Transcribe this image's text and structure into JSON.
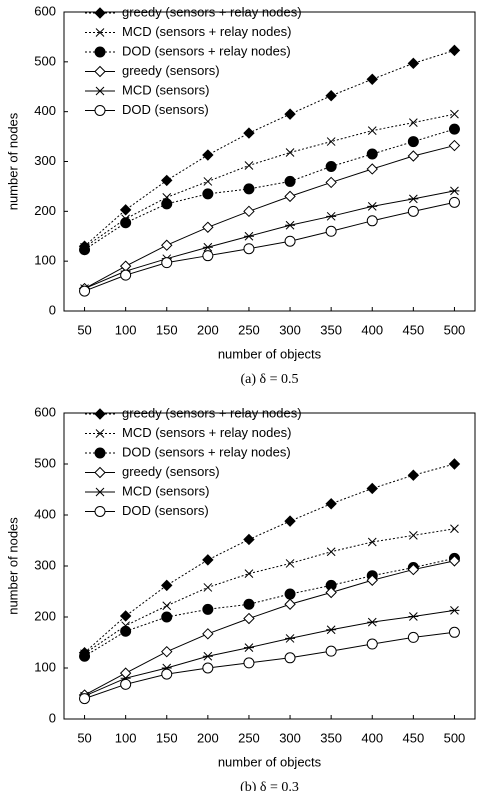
{
  "chart_data": [
    {
      "type": "line",
      "caption": "(a) δ = 0.5",
      "xlabel": "number of objects",
      "ylabel": "number of nodes",
      "x": [
        50,
        100,
        150,
        200,
        250,
        300,
        350,
        400,
        450,
        500
      ],
      "xlim": [
        25,
        525
      ],
      "xticks": [
        50,
        100,
        150,
        200,
        250,
        300,
        350,
        400,
        450,
        500
      ],
      "ylim": [
        0,
        600
      ],
      "yticks": [
        0,
        100,
        200,
        300,
        400,
        500,
        600
      ],
      "legend": "top-left",
      "series": [
        {
          "name": "greedy (sensors + relay nodes)",
          "color": "#000000",
          "marker": "diamond-filled",
          "line_style": "dotted",
          "values": [
            130,
            203,
            262,
            313,
            357,
            395,
            432,
            465,
            497,
            523
          ]
        },
        {
          "name": "MCD (sensors + relay nodes)",
          "color": "#000000",
          "marker": "x",
          "line_style": "dotted",
          "values": [
            128,
            185,
            228,
            260,
            292,
            318,
            340,
            362,
            378,
            395
          ]
        },
        {
          "name": "DOD (sensors + relay nodes)",
          "color": "#000000",
          "marker": "circle-filled",
          "line_style": "dotted",
          "values": [
            123,
            177,
            215,
            235,
            245,
            260,
            290,
            315,
            340,
            365
          ]
        },
        {
          "name": "greedy (sensors)",
          "color": "#000000",
          "marker": "diamond-open",
          "line_style": "solid",
          "values": [
            45,
            90,
            132,
            168,
            200,
            230,
            258,
            285,
            311,
            332
          ]
        },
        {
          "name": "MCD (sensors)",
          "color": "#000000",
          "marker": "asterisk",
          "line_style": "solid",
          "values": [
            45,
            80,
            105,
            128,
            150,
            172,
            190,
            210,
            225,
            241
          ]
        },
        {
          "name": "DOD (sensors)",
          "color": "#000000",
          "marker": "circle-open",
          "line_style": "solid",
          "values": [
            40,
            72,
            97,
            111,
            125,
            140,
            160,
            181,
            200,
            218
          ]
        }
      ]
    },
    {
      "type": "line",
      "caption": "(b) δ = 0.3",
      "xlabel": "number of objects",
      "ylabel": "number of nodes",
      "x": [
        50,
        100,
        150,
        200,
        250,
        300,
        350,
        400,
        450,
        500
      ],
      "xlim": [
        25,
        525
      ],
      "xticks": [
        50,
        100,
        150,
        200,
        250,
        300,
        350,
        400,
        450,
        500
      ],
      "ylim": [
        0,
        600
      ],
      "yticks": [
        0,
        100,
        200,
        300,
        400,
        500,
        600
      ],
      "legend": "top-left",
      "series": [
        {
          "name": "greedy (sensors + relay nodes)",
          "color": "#000000",
          "marker": "diamond-filled",
          "line_style": "dotted",
          "values": [
            130,
            202,
            262,
            312,
            352,
            388,
            422,
            452,
            478,
            500
          ]
        },
        {
          "name": "MCD (sensors + relay nodes)",
          "color": "#000000",
          "marker": "x",
          "line_style": "dotted",
          "values": [
            128,
            183,
            222,
            258,
            285,
            305,
            328,
            347,
            360,
            373
          ]
        },
        {
          "name": "DOD (sensors + relay nodes)",
          "color": "#000000",
          "marker": "circle-filled",
          "line_style": "dotted",
          "values": [
            123,
            172,
            200,
            215,
            225,
            245,
            262,
            281,
            297,
            315
          ]
        },
        {
          "name": "greedy (sensors)",
          "color": "#000000",
          "marker": "diamond-open",
          "line_style": "solid",
          "values": [
            47,
            90,
            132,
            167,
            197,
            225,
            248,
            272,
            293,
            310
          ]
        },
        {
          "name": "MCD (sensors)",
          "color": "#000000",
          "marker": "asterisk",
          "line_style": "solid",
          "values": [
            45,
            80,
            100,
            123,
            140,
            158,
            175,
            190,
            201,
            213
          ]
        },
        {
          "name": "DOD (sensors)",
          "color": "#000000",
          "marker": "circle-open",
          "line_style": "solid",
          "values": [
            40,
            68,
            88,
            100,
            110,
            120,
            133,
            147,
            160,
            170
          ]
        }
      ]
    }
  ]
}
